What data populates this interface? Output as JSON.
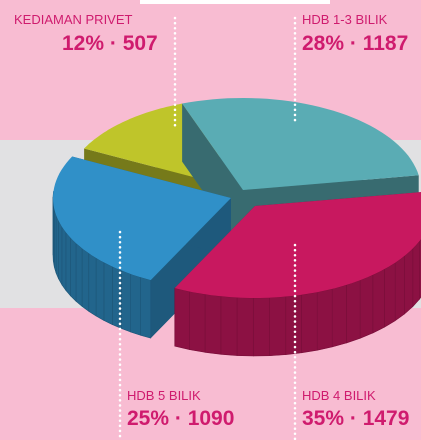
{
  "chart_data": {
    "type": "pie3d",
    "categories": [
      "KEDIAMAN PRIVET",
      "HDB 1-3 BILIK",
      "HDB 4 BILIK",
      "HDB 5 BILIK"
    ],
    "values": [
      12,
      28,
      35,
      25
    ],
    "value_labels": [
      "12% · 507",
      "28% · 1187",
      "35% · 1479",
      "25% · 1090"
    ],
    "colors": [
      "#bfc52a",
      "#5aacb4",
      "#c8185f",
      "#3090c8"
    ]
  }
}
